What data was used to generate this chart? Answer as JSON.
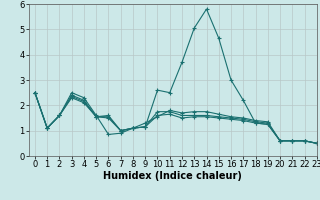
{
  "xlabel": "Humidex (Indice chaleur)",
  "x": [
    0,
    1,
    2,
    3,
    4,
    5,
    6,
    7,
    8,
    9,
    10,
    11,
    12,
    13,
    14,
    15,
    16,
    17,
    18,
    19,
    20,
    21,
    22,
    23
  ],
  "series": [
    [
      2.5,
      1.1,
      1.6,
      2.5,
      2.3,
      1.6,
      0.85,
      0.9,
      1.1,
      1.3,
      1.55,
      1.8,
      1.7,
      1.75,
      1.75,
      1.65,
      1.55,
      1.5,
      1.4,
      1.35,
      0.6,
      0.6,
      0.6,
      0.5
    ],
    [
      2.5,
      1.1,
      1.6,
      2.4,
      2.2,
      1.55,
      1.6,
      1.0,
      1.1,
      1.15,
      2.6,
      2.5,
      3.7,
      5.05,
      5.8,
      4.65,
      3.0,
      2.2,
      1.3,
      1.25,
      0.6,
      0.6,
      0.6,
      0.5
    ],
    [
      2.5,
      1.1,
      1.6,
      2.35,
      2.15,
      1.55,
      1.55,
      1.0,
      1.1,
      1.15,
      1.75,
      1.75,
      1.6,
      1.6,
      1.6,
      1.55,
      1.5,
      1.45,
      1.35,
      1.3,
      0.6,
      0.6,
      0.6,
      0.5
    ],
    [
      2.5,
      1.1,
      1.6,
      2.3,
      2.1,
      1.55,
      1.5,
      1.0,
      1.1,
      1.15,
      1.6,
      1.65,
      1.5,
      1.55,
      1.55,
      1.5,
      1.45,
      1.4,
      1.3,
      1.25,
      0.6,
      0.6,
      0.6,
      0.5
    ]
  ],
  "line_color": "#1a7070",
  "marker": "+",
  "markersize": 3,
  "linewidth": 0.8,
  "markeredgewidth": 0.8,
  "ylim": [
    0,
    6
  ],
  "xlim": [
    -0.5,
    23
  ],
  "yticks": [
    0,
    1,
    2,
    3,
    4,
    5,
    6
  ],
  "xticks": [
    0,
    1,
    2,
    3,
    4,
    5,
    6,
    7,
    8,
    9,
    10,
    11,
    12,
    13,
    14,
    15,
    16,
    17,
    18,
    19,
    20,
    21,
    22,
    23
  ],
  "bg_color": "#cce8e8",
  "grid_color": "#b8c8c8",
  "axis_label_fontsize": 7,
  "tick_fontsize": 6
}
